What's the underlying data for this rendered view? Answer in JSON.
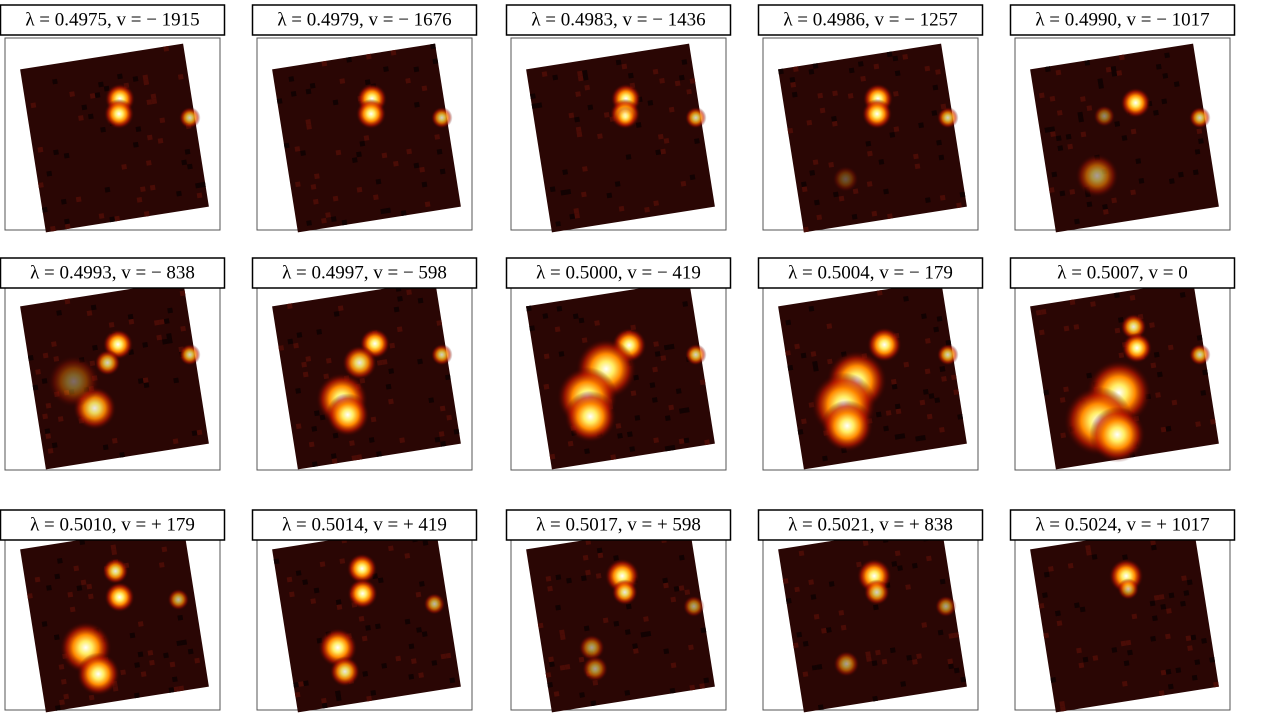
{
  "panels": [
    {
      "label": "λ = 0.4975, v = − 1915"
    },
    {
      "label": "λ = 0.4979, v = − 1676"
    },
    {
      "label": "λ = 0.4983, v = − 1436"
    },
    {
      "label": "λ = 0.4986, v = − 1257"
    },
    {
      "label": "λ = 0.4990, v = − 1017"
    },
    {
      "label": "λ = 0.4993, v = − 838"
    },
    {
      "label": "λ = 0.4997, v = − 598"
    },
    {
      "label": "λ = 0.5000, v = − 419"
    },
    {
      "label": "λ = 0.5004, v = − 179"
    },
    {
      "label": "λ = 0.5007, v = 0"
    },
    {
      "label": "λ = 0.5010, v = + 179"
    },
    {
      "label": "λ = 0.5014, v = + 419"
    },
    {
      "label": "λ = 0.5017, v = + 598"
    },
    {
      "label": "λ = 0.5021, v = + 838"
    },
    {
      "label": "λ = 0.5024, v = + 1017"
    }
  ]
}
